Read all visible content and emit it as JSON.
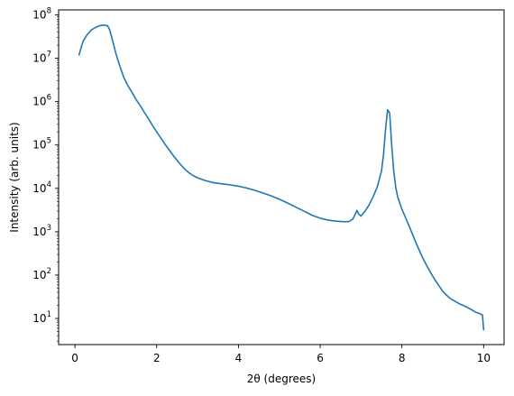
{
  "chart_data": {
    "type": "line",
    "title": "",
    "xlabel": "2θ (degrees)",
    "ylabel": "Intensity (arb. units)",
    "yscale": "log",
    "xlim": [
      -0.4,
      10.5
    ],
    "ylim": [
      2.5,
      130000000
    ],
    "grid": false,
    "legend": "none",
    "x_ticks": [
      {
        "value": 0,
        "label": "0"
      },
      {
        "value": 2,
        "label": "2"
      },
      {
        "value": 4,
        "label": "4"
      },
      {
        "value": 6,
        "label": "6"
      },
      {
        "value": 8,
        "label": "8"
      },
      {
        "value": 10,
        "label": "10"
      }
    ],
    "y_ticks": [
      {
        "value": 10,
        "base": "10",
        "exp": "1"
      },
      {
        "value": 100,
        "base": "10",
        "exp": "2"
      },
      {
        "value": 1000,
        "base": "10",
        "exp": "3"
      },
      {
        "value": 10000,
        "base": "10",
        "exp": "4"
      },
      {
        "value": 100000,
        "base": "10",
        "exp": "5"
      },
      {
        "value": 1000000,
        "base": "10",
        "exp": "6"
      },
      {
        "value": 10000000,
        "base": "10",
        "exp": "7"
      },
      {
        "value": 100000000,
        "base": "10",
        "exp": "8"
      }
    ],
    "series": [
      {
        "color": "#1f77b4",
        "points": [
          [
            0.1,
            12000000
          ],
          [
            0.2,
            25000000
          ],
          [
            0.3,
            35000000
          ],
          [
            0.4,
            45000000
          ],
          [
            0.5,
            51000000
          ],
          [
            0.6,
            56000000
          ],
          [
            0.7,
            58000000
          ],
          [
            0.8,
            56000000
          ],
          [
            0.85,
            45000000
          ],
          [
            0.9,
            30000000
          ],
          [
            0.95,
            20000000
          ],
          [
            1.0,
            13000000
          ],
          [
            1.1,
            6500000
          ],
          [
            1.2,
            3500000
          ],
          [
            1.3,
            2300000
          ],
          [
            1.4,
            1600000
          ],
          [
            1.5,
            1100000
          ],
          [
            1.6,
            800000
          ],
          [
            1.7,
            560000
          ],
          [
            1.8,
            400000
          ],
          [
            1.9,
            280000
          ],
          [
            2.0,
            200000
          ],
          [
            2.1,
            145000
          ],
          [
            2.2,
            105000
          ],
          [
            2.3,
            78000
          ],
          [
            2.4,
            58000
          ],
          [
            2.5,
            44000
          ],
          [
            2.6,
            34000
          ],
          [
            2.7,
            27000
          ],
          [
            2.8,
            22500
          ],
          [
            2.9,
            19500
          ],
          [
            3.0,
            17500
          ],
          [
            3.2,
            15000
          ],
          [
            3.4,
            13500
          ],
          [
            3.6,
            12700
          ],
          [
            3.8,
            12000
          ],
          [
            4.0,
            11200
          ],
          [
            4.2,
            10200
          ],
          [
            4.4,
            9000
          ],
          [
            4.6,
            7800
          ],
          [
            4.8,
            6700
          ],
          [
            5.0,
            5600
          ],
          [
            5.2,
            4600
          ],
          [
            5.4,
            3700
          ],
          [
            5.6,
            3000
          ],
          [
            5.8,
            2400
          ],
          [
            6.0,
            2050
          ],
          [
            6.2,
            1850
          ],
          [
            6.4,
            1750
          ],
          [
            6.6,
            1700
          ],
          [
            6.7,
            1720
          ],
          [
            6.8,
            1950
          ],
          [
            6.9,
            3100
          ],
          [
            6.95,
            2500
          ],
          [
            7.0,
            2300
          ],
          [
            7.1,
            3000
          ],
          [
            7.2,
            4200
          ],
          [
            7.3,
            6500
          ],
          [
            7.4,
            11000
          ],
          [
            7.5,
            25000
          ],
          [
            7.55,
            60000
          ],
          [
            7.6,
            230000
          ],
          [
            7.65,
            650000
          ],
          [
            7.7,
            550000
          ],
          [
            7.75,
            100000
          ],
          [
            7.8,
            25000
          ],
          [
            7.85,
            10500
          ],
          [
            7.9,
            6200
          ],
          [
            8.0,
            3300
          ],
          [
            8.1,
            2000
          ],
          [
            8.2,
            1200
          ],
          [
            8.3,
            700
          ],
          [
            8.4,
            420
          ],
          [
            8.5,
            260
          ],
          [
            8.6,
            170
          ],
          [
            8.7,
            115
          ],
          [
            8.8,
            80
          ],
          [
            8.9,
            58
          ],
          [
            9.0,
            42
          ],
          [
            9.1,
            34
          ],
          [
            9.2,
            28
          ],
          [
            9.3,
            25
          ],
          [
            9.4,
            22
          ],
          [
            9.5,
            20
          ],
          [
            9.6,
            18
          ],
          [
            9.7,
            16
          ],
          [
            9.8,
            14
          ],
          [
            9.9,
            13
          ],
          [
            9.97,
            12
          ],
          [
            10.0,
            5.5
          ]
        ]
      }
    ]
  }
}
